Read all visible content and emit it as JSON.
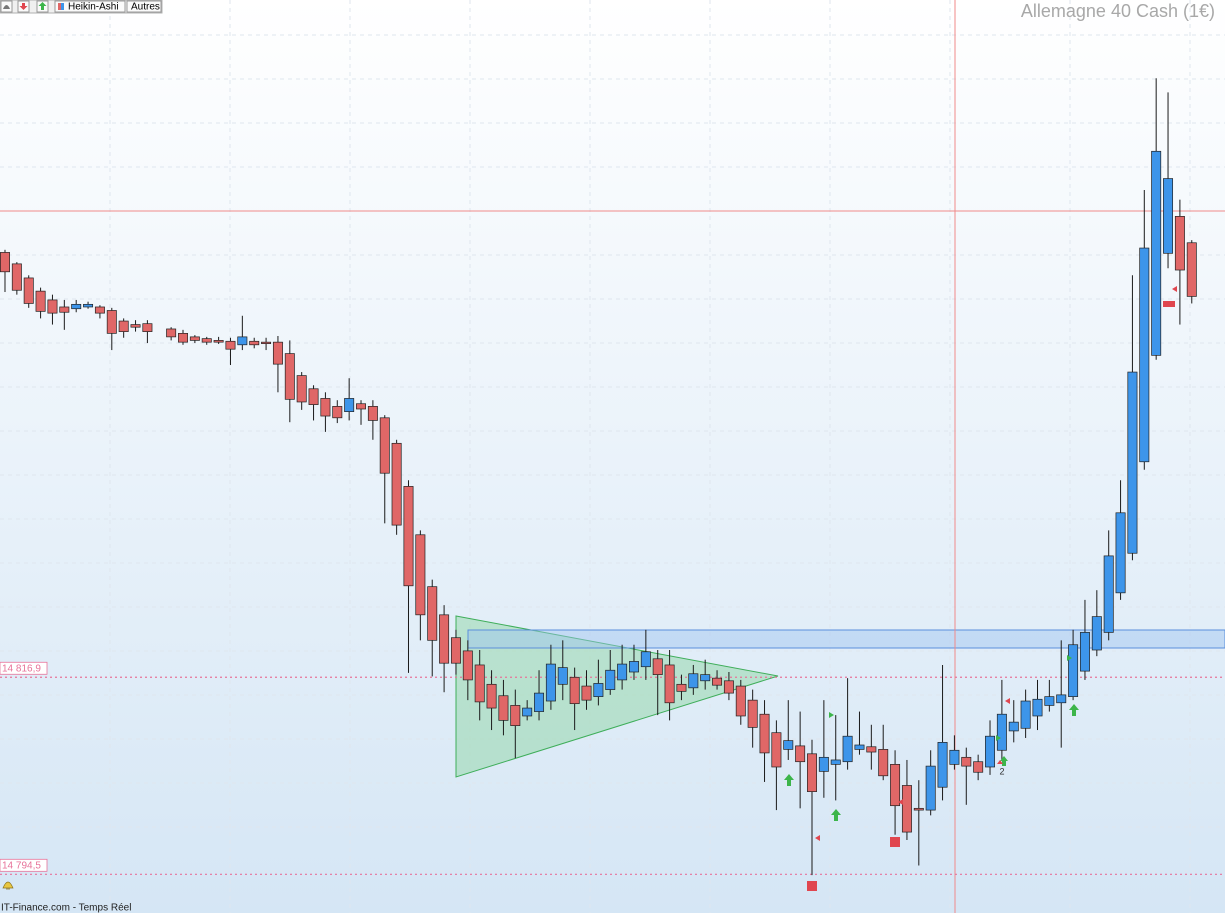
{
  "chart_data": {
    "type": "candlestick",
    "title": "Allemagne 40 Cash (1€)",
    "x": [
      0,
      1,
      2,
      3,
      4,
      5,
      6,
      7,
      8,
      9,
      10,
      11,
      12,
      14,
      15,
      16,
      17,
      18,
      19,
      20,
      21,
      22,
      23,
      24,
      25,
      26,
      27,
      28,
      29,
      30,
      31,
      32,
      33,
      34,
      35,
      36,
      37,
      38,
      39,
      40,
      41,
      42,
      43,
      44,
      45,
      46,
      47,
      48,
      49,
      50,
      51,
      52,
      53,
      54,
      55,
      56,
      57,
      58,
      59,
      60,
      61,
      62,
      63,
      64,
      65,
      66,
      67,
      68,
      69,
      70,
      71,
      72,
      73,
      74,
      75,
      76,
      77,
      78,
      79,
      80,
      81,
      82,
      83,
      84,
      85,
      86,
      87,
      88,
      89,
      90,
      91,
      92,
      93,
      94,
      95,
      96,
      97,
      98,
      99,
      100
    ],
    "open": [
      14865.2,
      14863.9,
      14862.3,
      14860.8,
      14859.8,
      14859.0,
      14858.8,
      14859.0,
      14859.0,
      14858.6,
      14857.4,
      14857.0,
      14857.1,
      14856.5,
      14856.0,
      14855.6,
      14855.4,
      14855.2,
      14855.1,
      14854.7,
      14855.1,
      14855.0,
      14855.0,
      14853.7,
      14851.2,
      14849.7,
      14848.6,
      14847.7,
      14847.1,
      14848.0,
      14847.7,
      14846.4,
      14843.5,
      14838.6,
      14833.1,
      14827.2,
      14824.0,
      14821.4,
      14819.9,
      14818.3,
      14816.1,
      14814.8,
      14813.7,
      14812.5,
      14813.0,
      14814.2,
      14816.1,
      14816.9,
      14815.9,
      14814.7,
      14815.5,
      14816.6,
      14817.5,
      14818.1,
      14819.0,
      14818.3,
      14816.1,
      14815.7,
      14816.5,
      14816.8,
      14816.5,
      14815.9,
      14814.3,
      14812.7,
      14810.6,
      14808.7,
      14809.1,
      14808.2,
      14806.2,
      14807.0,
      14807.3,
      14808.7,
      14809.0,
      14808.7,
      14807.0,
      14804.6,
      14802.0,
      14801.8,
      14804.4,
      14807.0,
      14807.8,
      14807.3,
      14806.7,
      14808.6,
      14810.8,
      14811.1,
      14812.5,
      14813.7,
      14814.0,
      14814.7,
      14817.6,
      14820.0,
      14822.0,
      14826.5,
      14831.0,
      14841.4,
      14853.5,
      14865.1,
      14869.3,
      14866.3
    ],
    "high": [
      14865.5,
      14864.1,
      14862.6,
      14861.2,
      14860.4,
      14859.8,
      14859.8,
      14859.6,
      14859.2,
      14858.9,
      14857.7,
      14857.5,
      14857.5,
      14856.7,
      14856.4,
      14855.8,
      14855.6,
      14855.6,
      14855.5,
      14858.0,
      14855.5,
      14855.5,
      14855.7,
      14855.2,
      14851.6,
      14850.1,
      14849.3,
      14848.4,
      14850.9,
      14848.4,
      14848.4,
      14846.7,
      14843.9,
      14839.3,
      14833.6,
      14828.0,
      14825.1,
      14822.3,
      14821.1,
      14820.0,
      14817.7,
      14816.6,
      14815.5,
      14814.3,
      14817.7,
      14820.6,
      14821.1,
      14818.0,
      14817.7,
      14818.9,
      14820.0,
      14820.6,
      14820.6,
      14822.3,
      14820.0,
      14820.0,
      14817.2,
      14818.3,
      14818.9,
      14817.7,
      14817.5,
      14816.6,
      14815.5,
      14814.3,
      14812.0,
      14814.3,
      14813.0,
      14809.8,
      14814.3,
      14812.6,
      14816.8,
      14813.0,
      14811.5,
      14811.5,
      14808.6,
      14807.5,
      14805.2,
      14808.6,
      14818.3,
      14810.3,
      14808.9,
      14808.1,
      14812.0,
      14816.6,
      14814.3,
      14815.5,
      14816.6,
      14816.6,
      14821.1,
      14822.3,
      14825.7,
      14826.8,
      14833.6,
      14839.3,
      14862.6,
      14872.3,
      14885.0,
      14883.4,
      14871.2,
      14866.6
    ],
    "low": [
      14860.7,
      14860.4,
      14858.9,
      14857.7,
      14857.0,
      14856.4,
      14858.4,
      14858.8,
      14857.7,
      14854.1,
      14855.5,
      14856.2,
      14854.9,
      14855.2,
      14854.7,
      14854.9,
      14854.7,
      14854.8,
      14852.4,
      14854.1,
      14854.3,
      14854.1,
      14849.3,
      14845.9,
      14847.3,
      14846.1,
      14844.8,
      14845.8,
      14846.1,
      14845.6,
      14843.9,
      14834.4,
      14833.1,
      14817.4,
      14821.1,
      14817.0,
      14815.2,
      14817.2,
      14814.3,
      14812.0,
      14810.9,
      14810.3,
      14807.7,
      14812.0,
      14812.0,
      14813.2,
      14814.3,
      14810.9,
      14813.2,
      14813.7,
      14814.9,
      14815.5,
      14816.6,
      14816.6,
      14812.6,
      14812.0,
      14814.3,
      14814.9,
      14815.5,
      14815.5,
      14814.3,
      14811.5,
      14808.9,
      14805.0,
      14801.8,
      14807.5,
      14802.0,
      14794.4,
      14803.2,
      14802.9,
      14806.4,
      14808.1,
      14806.4,
      14805.2,
      14799.0,
      14798.4,
      14795.5,
      14801.2,
      14802.9,
      14806.4,
      14802.4,
      14805.2,
      14805.8,
      14807.5,
      14809.5,
      14810.0,
      14810.9,
      14813.0,
      14808.9,
      14814.3,
      14816.6,
      14819.3,
      14821.1,
      14825.7,
      14830.2,
      14840.5,
      14853.0,
      14863.4,
      14857.0,
      14859.4
    ],
    "close": [
      14863.0,
      14860.9,
      14859.4,
      14858.5,
      14858.3,
      14858.4,
      14859.3,
      14859.3,
      14858.3,
      14856.0,
      14856.2,
      14856.7,
      14856.2,
      14855.6,
      14855.0,
      14855.2,
      14855.0,
      14855.0,
      14854.2,
      14855.6,
      14854.7,
      14854.9,
      14852.5,
      14848.5,
      14848.2,
      14847.9,
      14846.6,
      14846.4,
      14848.6,
      14847.4,
      14846.1,
      14840.1,
      14834.2,
      14827.3,
      14824.0,
      14821.1,
      14818.5,
      14818.5,
      14816.6,
      14814.1,
      14813.4,
      14812.0,
      14811.4,
      14813.4,
      14815.1,
      14818.4,
      14818.0,
      14813.9,
      14814.3,
      14816.2,
      14817.7,
      14818.4,
      14818.7,
      14819.8,
      14817.2,
      14814.0,
      14815.3,
      14817.3,
      14817.2,
      14816.0,
      14815.1,
      14812.5,
      14811.2,
      14808.3,
      14806.7,
      14809.7,
      14807.3,
      14803.9,
      14807.8,
      14807.5,
      14810.2,
      14809.2,
      14808.4,
      14805.7,
      14802.3,
      14799.3,
      14801.8,
      14806.8,
      14809.5,
      14808.6,
      14806.8,
      14806.1,
      14810.2,
      14812.7,
      14811.8,
      14814.2,
      14814.4,
      14814.7,
      14814.9,
      14820.6,
      14822.0,
      14823.8,
      14830.7,
      14835.6,
      14851.6,
      14865.7,
      14876.7,
      14873.6,
      14863.2,
      14860.2
    ],
    "up_color": "#3d95ea",
    "down_color": "#e06767",
    "xlim": [
      -0.42,
      102.8
    ],
    "ylim": [
      14790.1,
      14893.9
    ],
    "price_lines": [
      {
        "value": 14816.9,
        "label": "14 816,9"
      },
      {
        "value": 14794.5,
        "label": "14 794,5"
      }
    ],
    "price_line_color": "#e7739a"
  },
  "toolbar": {
    "chart_style": "Heikin-Ashi",
    "more": "Autres"
  },
  "signal_count": "2",
  "footer": "IT-Finance.com - Temps Réel"
}
